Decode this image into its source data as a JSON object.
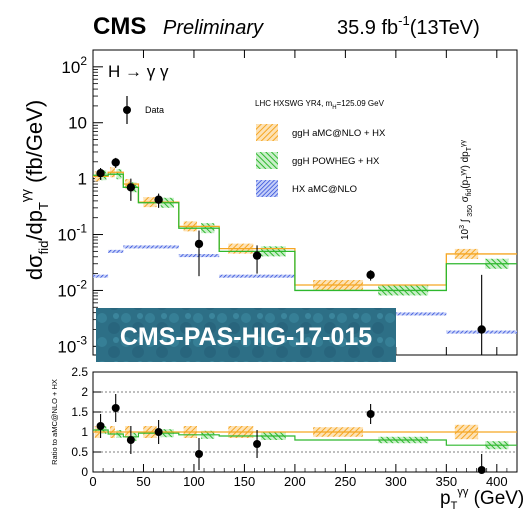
{
  "header": {
    "experiment": "CMS",
    "status": "Preliminary",
    "lumi": "35.9 fb",
    "lumi_exp": "-1",
    "energy": "(13TeV)"
  },
  "stamp": {
    "text": "CMS-PAS-HIG-17-015",
    "bg": "#2d6f86"
  },
  "colors": {
    "data": "#000000",
    "aMCNLO": "#f5a623",
    "POWHEG": "#2eb82e",
    "HX": "#1f3fd6"
  },
  "chart_data": [
    {
      "type": "step",
      "process": "H → γ γ",
      "xlabel": "p_T^γγ (GeV)",
      "ylabel": "dσ_fid/dp_T^γγ (fb/GeV)",
      "yscale": "log",
      "ylim": [
        0.0007,
        200
      ],
      "xlim": [
        0,
        420
      ],
      "legend_note": "LHC HXSWG YR4, m_H=125.09 GeV",
      "overflow_label": "10^3 ∫_350^∞ σ_fid(p_T^γγ) dp_T^γγ",
      "bin_edges": [
        0,
        15,
        30,
        45,
        85,
        125,
        200,
        350,
        420
      ],
      "series": [
        {
          "name": "Data",
          "style": "points",
          "x": [
            7.5,
            22.5,
            37.5,
            65,
            105,
            162.5,
            275,
            385
          ],
          "y": [
            1.25,
            1.95,
            0.7,
            0.42,
            0.068,
            0.042,
            0.019,
            0.002
          ],
          "err_low": [
            0.3,
            0.4,
            0.3,
            0.12,
            0.05,
            0.022,
            0.004,
            0.002
          ],
          "err_high": [
            0.3,
            0.4,
            0.3,
            0.12,
            0.05,
            0.022,
            0.004,
            0.017
          ]
        },
        {
          "name": "ggH aMC@NLO + HX",
          "style": "band",
          "y": [
            1.1,
            1.3,
            0.8,
            0.38,
            0.14,
            0.056,
            0.0125,
            0.045
          ]
        },
        {
          "name": "ggH POWHEG + HX",
          "style": "band",
          "y": [
            1.15,
            1.2,
            0.7,
            0.37,
            0.13,
            0.05,
            0.01,
            0.03
          ]
        },
        {
          "name": "HX aMC@NLO",
          "style": "band",
          "y": [
            0.018,
            0.05,
            0.06,
            0.06,
            0.042,
            0.018,
            0.0038,
            0.0018
          ]
        }
      ],
      "xticks": [],
      "yticks": [
        "10^-3",
        "10^-2",
        "10^-1",
        "1",
        "10",
        "10^2"
      ]
    },
    {
      "type": "ratio",
      "ylabel": "Ratio to aMC@NLO + HX",
      "xlabel": "p_T^γγ (GeV)",
      "xlim": [
        0,
        420
      ],
      "ylim": [
        0,
        2.5
      ],
      "yticks": [
        "0",
        "0.5",
        "1",
        "1.5",
        "2",
        "2.5"
      ],
      "xticks": [
        "0",
        "50",
        "100",
        "150",
        "200",
        "250",
        "300",
        "350",
        "400"
      ],
      "dashed_levels": [
        0.5,
        1.0,
        1.5,
        2.0
      ],
      "series": [
        {
          "name": "Data",
          "x": [
            7.5,
            22.5,
            37.5,
            65,
            105,
            162.5,
            275,
            385
          ],
          "y": [
            1.15,
            1.6,
            0.8,
            1.0,
            0.45,
            0.7,
            1.45,
            0.05
          ],
          "err_low": [
            0.3,
            0.35,
            0.35,
            0.3,
            0.4,
            0.35,
            0.25,
            0.05
          ],
          "err_high": [
            0.3,
            0.35,
            0.35,
            0.3,
            0.4,
            0.35,
            0.25,
            0.4
          ]
        },
        {
          "name": "ggH aMC@NLO + HX",
          "y": [
            1.0,
            1.0,
            1.0,
            1.0,
            1.0,
            1.0,
            1.0,
            1.0
          ],
          "err": [
            0.15,
            0.15,
            0.15,
            0.15,
            0.15,
            0.15,
            0.12,
            0.18
          ]
        },
        {
          "name": "ggH POWHEG + HX",
          "y": [
            1.05,
            0.95,
            0.88,
            0.97,
            0.93,
            0.9,
            0.8,
            0.67
          ],
          "err": [
            0.1,
            0.1,
            0.1,
            0.1,
            0.1,
            0.1,
            0.08,
            0.1
          ]
        }
      ]
    }
  ]
}
